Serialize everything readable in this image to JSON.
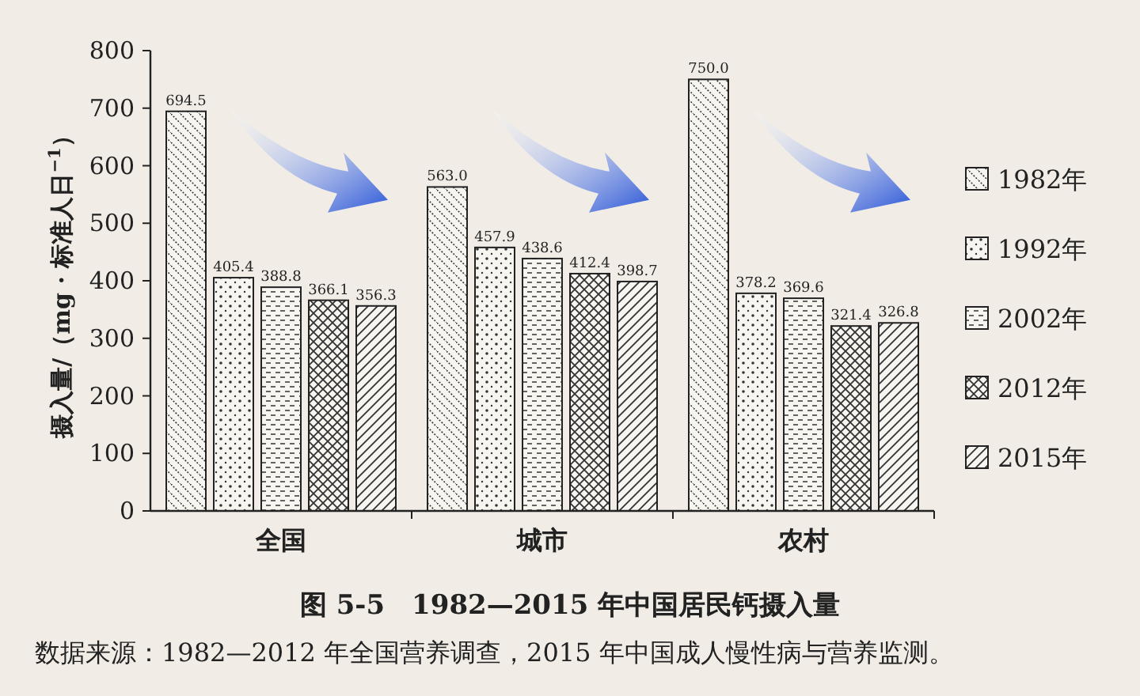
{
  "chart_data": {
    "type": "bar",
    "title": "图 5-5　1982—2015 年中国居民钙摄入量",
    "ylabel": "摄入量/（mg · 标准人日$^{−1}$）",
    "categories": [
      "全国",
      "城市",
      "农村"
    ],
    "series": [
      {
        "name": "1982年",
        "values": [
          694.5,
          563.0,
          750.0
        ]
      },
      {
        "name": "1992年",
        "values": [
          405.4,
          457.9,
          378.2
        ]
      },
      {
        "name": "2002年",
        "values": [
          388.8,
          438.6,
          369.6
        ]
      },
      {
        "name": "2012年",
        "values": [
          366.1,
          412.4,
          321.4
        ]
      },
      {
        "name": "2015年",
        "values": [
          356.3,
          398.7,
          326.8
        ]
      }
    ],
    "value_labels": [
      [
        "694.5",
        "563.0",
        "750.0"
      ],
      [
        "405.4",
        "457.9",
        "378.2"
      ],
      [
        "388.8",
        "438.6",
        "369.6"
      ],
      [
        "366.1",
        "412.4",
        "321.4"
      ],
      [
        "356.3",
        "398.7",
        "326.8"
      ]
    ],
    "ylim": [
      0,
      800
    ],
    "yticks": [
      0,
      100,
      200,
      300,
      400,
      500,
      600,
      700,
      800
    ],
    "grid": false,
    "legend": "right",
    "annotations": [
      "数据来源：1982—2012 年全国营养调查，2015 年中国成人慢性病与营养监测。"
    ]
  }
}
